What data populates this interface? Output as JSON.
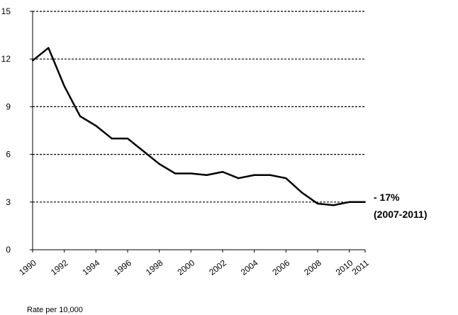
{
  "chart_data": {
    "type": "line",
    "title": "",
    "xlabel": "",
    "ylabel": "Rate per 10,000",
    "ylim": [
      0,
      15
    ],
    "yticks": [
      0,
      3,
      6,
      9,
      12,
      15
    ],
    "xlim": [
      1990,
      2011
    ],
    "xtick_labels": [
      "1990",
      "1992",
      "1994",
      "1996",
      "1998",
      "2000",
      "2002",
      "2004",
      "2006",
      "2008",
      "2010",
      "2011"
    ],
    "grid": "horizontal dashed",
    "series": [
      {
        "x": [
          1990,
          1991,
          1992,
          1993,
          1994,
          1995,
          1996,
          1997,
          1998,
          1999,
          2000,
          2001,
          2002,
          2003,
          2004,
          2005,
          2006,
          2007,
          2008,
          2009,
          2010,
          2011
        ],
        "y": [
          11.9,
          12.7,
          10.3,
          8.4,
          7.8,
          7.0,
          7.0,
          6.2,
          5.4,
          4.8,
          4.8,
          4.7,
          4.9,
          4.5,
          4.7,
          4.7,
          4.5,
          3.6,
          2.9,
          2.8,
          3.0,
          3.0
        ],
        "color": "#000000"
      }
    ],
    "annotations": [
      "- 17%",
      "(2007-2011)"
    ]
  }
}
